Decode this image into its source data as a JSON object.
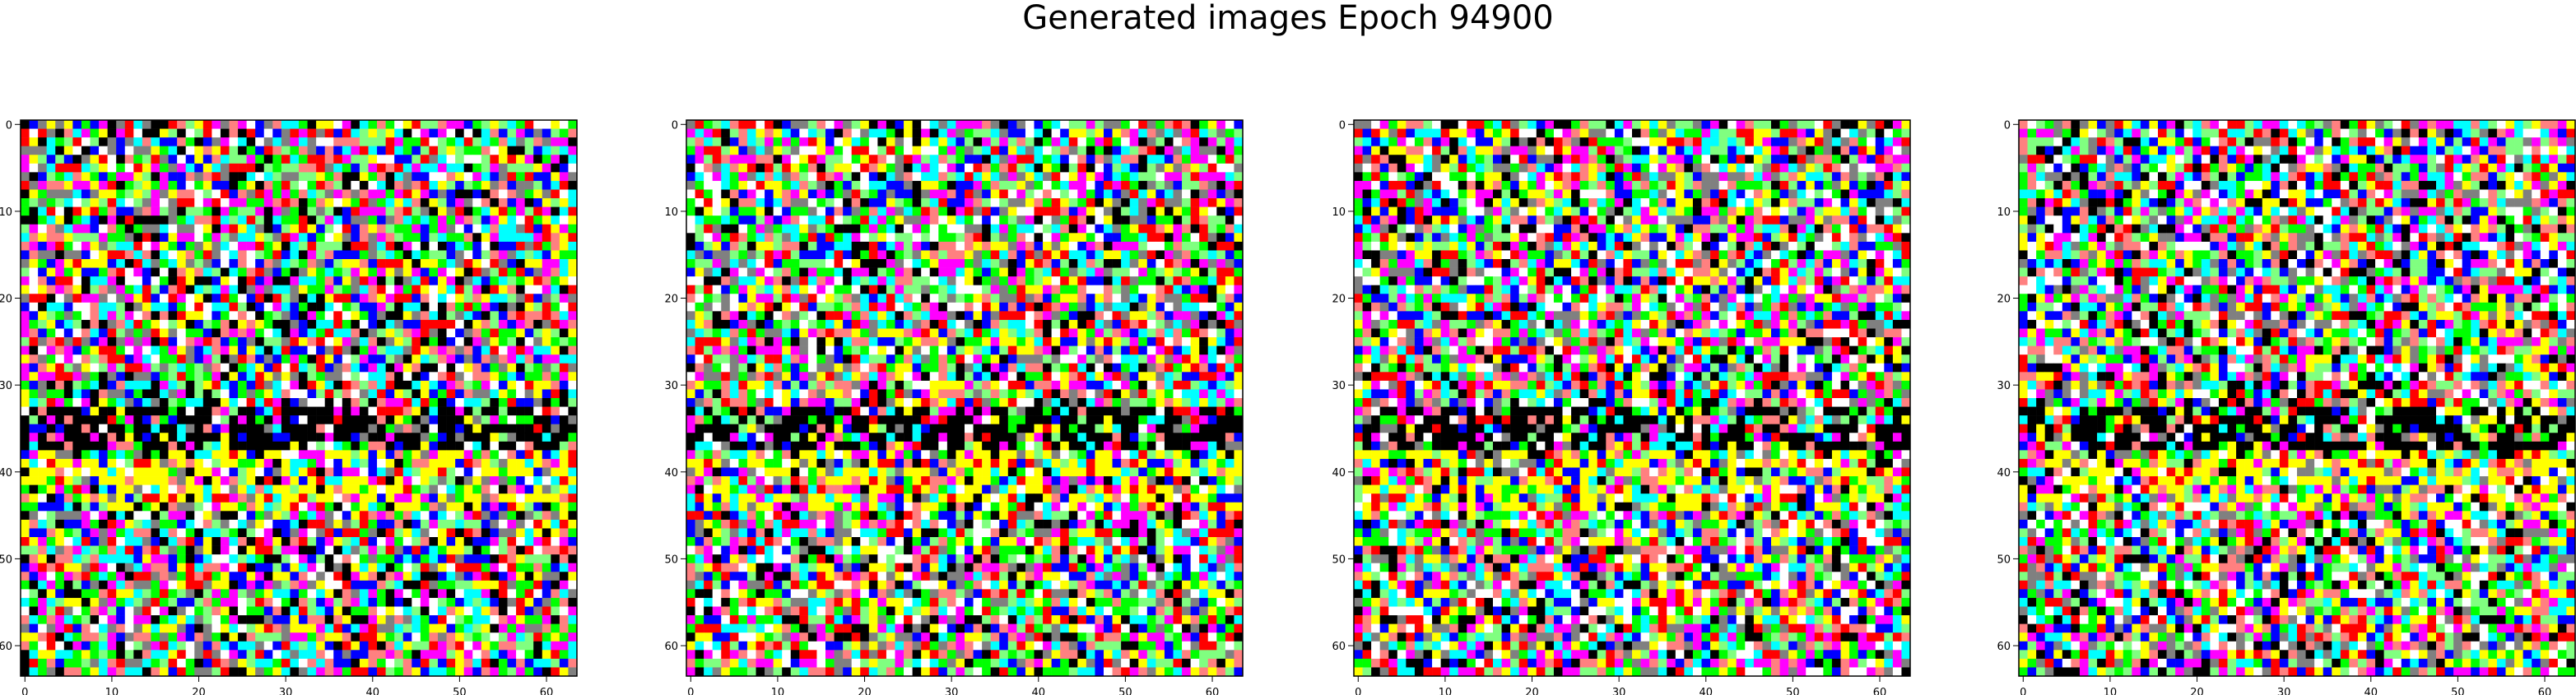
{
  "title": "Generated images Epoch 94900",
  "chart_data": [
    {
      "type": "heatmap",
      "subplot": 1,
      "xlim": [
        0,
        64
      ],
      "ylim": [
        64,
        0
      ],
      "xticks": [
        0,
        10,
        20,
        30,
        40,
        50,
        60
      ],
      "yticks": [
        0,
        10,
        20,
        30,
        40,
        50,
        60
      ]
    },
    {
      "type": "heatmap",
      "subplot": 2,
      "xlim": [
        0,
        64
      ],
      "ylim": [
        64,
        0
      ],
      "xticks": [
        0,
        10,
        20,
        30,
        40,
        50,
        60
      ],
      "yticks": [
        0,
        10,
        20,
        30,
        40,
        50,
        60
      ]
    },
    {
      "type": "heatmap",
      "subplot": 3,
      "xlim": [
        0,
        64
      ],
      "ylim": [
        64,
        0
      ],
      "xticks": [
        0,
        10,
        20,
        30,
        40,
        50,
        60
      ],
      "yticks": [
        0,
        10,
        20,
        30,
        40,
        50,
        60
      ]
    },
    {
      "type": "heatmap",
      "subplot": 4,
      "xlim": [
        0,
        64
      ],
      "ylim": [
        64,
        0
      ],
      "xticks": [
        0,
        10,
        20,
        30,
        40,
        50,
        60
      ],
      "yticks": [
        0,
        10,
        20,
        30,
        40,
        50,
        60
      ]
    }
  ],
  "palette": [
    "#ff0000",
    "#00ff00",
    "#0000ff",
    "#ffff00",
    "#00ffff",
    "#ff00ff",
    "#ffffff",
    "#000000",
    "#808080",
    "#ff8080",
    "#80ff80"
  ]
}
